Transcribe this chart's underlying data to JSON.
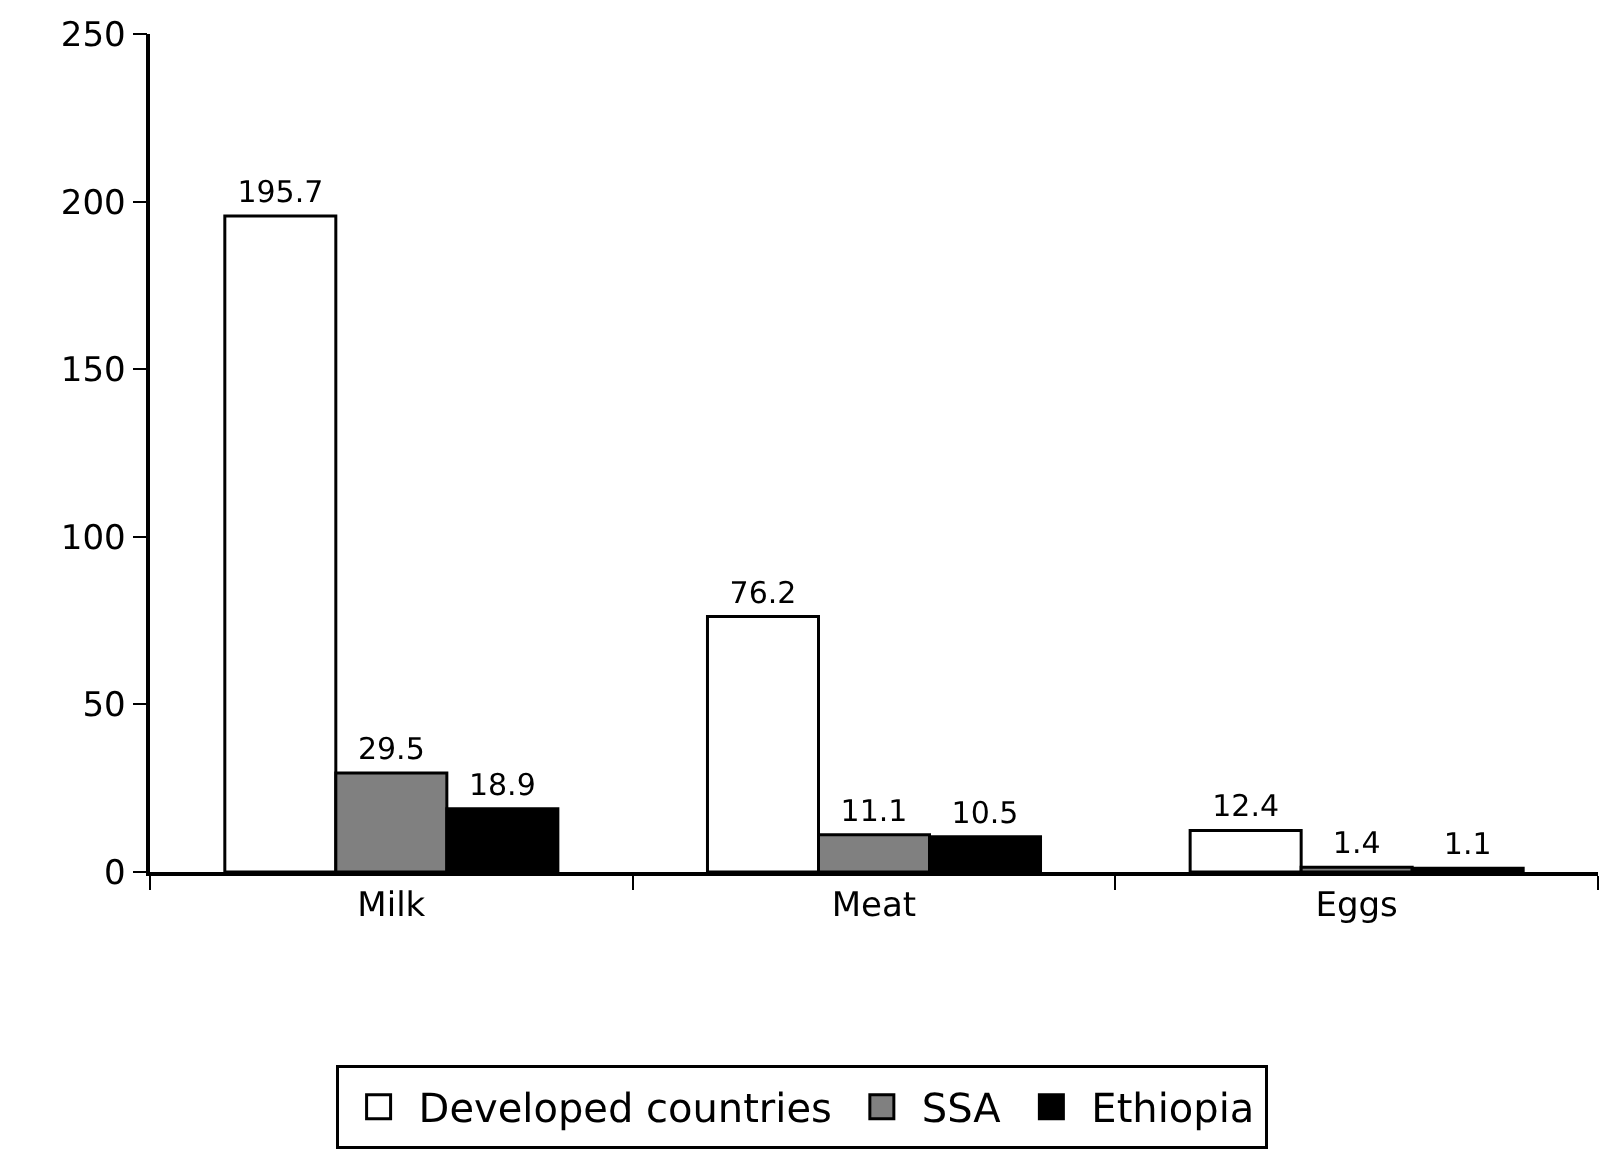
{
  "chart_data": {
    "type": "bar",
    "categories": [
      "Milk",
      "Meat",
      "Eggs"
    ],
    "series": [
      {
        "name": "Developed countries",
        "color": "#ffffff",
        "values": [
          195.7,
          76.2,
          12.4
        ]
      },
      {
        "name": "SSA",
        "color": "#808080",
        "values": [
          29.5,
          11.1,
          1.4
        ]
      },
      {
        "name": "Ethiopia",
        "color": "#000000",
        "values": [
          18.9,
          10.5,
          1.1
        ]
      }
    ],
    "ylim": [
      0,
      250
    ],
    "yticks": [
      0,
      50,
      100,
      150,
      200,
      250
    ],
    "grid": false,
    "legend": "bottom",
    "data_labels": true
  }
}
